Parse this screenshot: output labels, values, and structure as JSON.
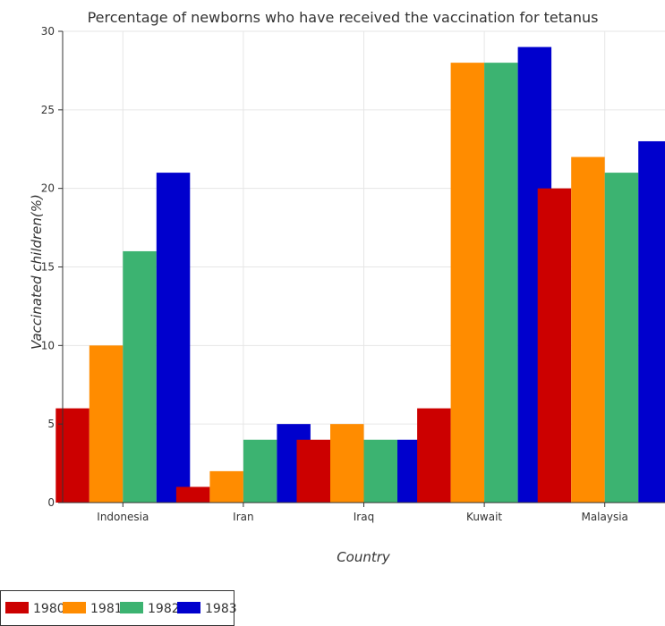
{
  "chart_data": {
    "type": "bar",
    "title": "Percentage of newborns who have received the vaccination for tetanus",
    "xlabel": "Country",
    "ylabel": "Vaccinated children(%)",
    "categories": [
      "Indonesia",
      "Iran",
      "Iraq",
      "Kuwait",
      "Malaysia"
    ],
    "series": [
      {
        "name": "1980",
        "color": "#cc0000",
        "values": [
          6,
          1,
          4,
          6,
          20
        ]
      },
      {
        "name": "1981",
        "color": "#ff8c00",
        "values": [
          10,
          2,
          5,
          28,
          22
        ]
      },
      {
        "name": "1982",
        "color": "#3cb371",
        "values": [
          16,
          4,
          4,
          28,
          21
        ]
      },
      {
        "name": "1983",
        "color": "#0000cd",
        "values": [
          21,
          5,
          4,
          29,
          23
        ]
      }
    ],
    "ylim": [
      0,
      30
    ],
    "yticks": [
      0,
      5,
      10,
      15,
      20,
      25,
      30
    ],
    "grid": true,
    "legend_position": "bottom-left"
  }
}
